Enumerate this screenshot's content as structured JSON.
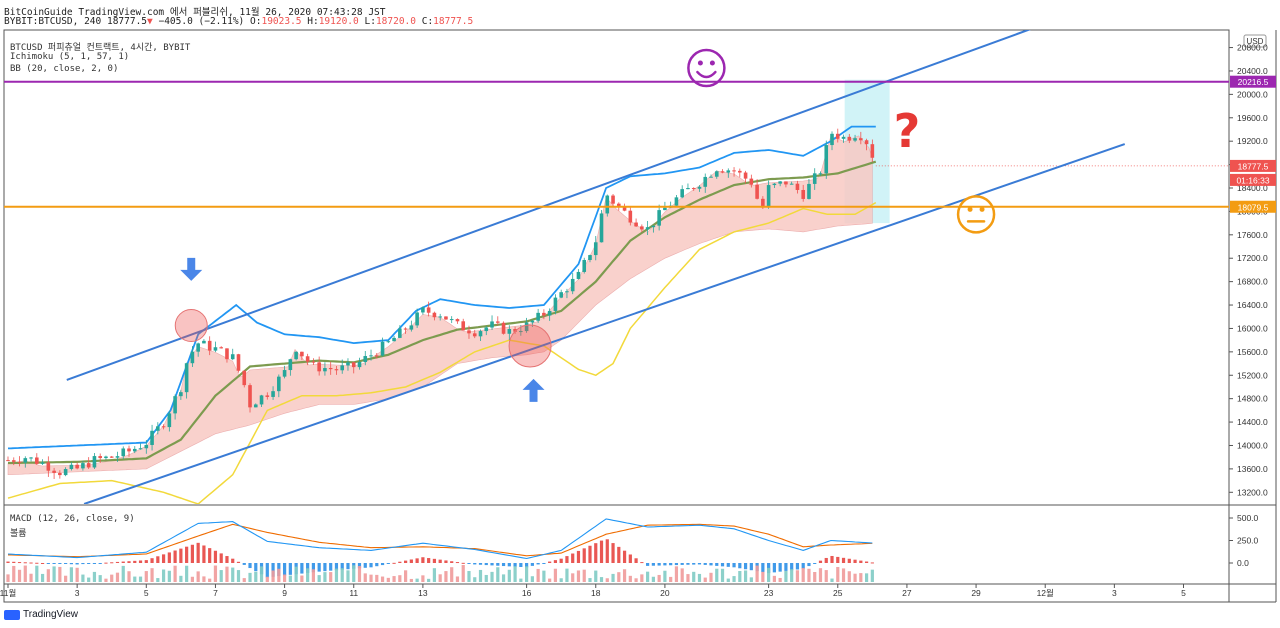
{
  "header": {
    "line1": "BitCoinGuide TradingView.com 에서 퍼블리쉬, 11월 26, 2020 07:43:28 JST",
    "symbol": "BYBIT:BTCUSD, 240",
    "last": "18777.5",
    "change": "−405.0 (−2.11%)",
    "o_label": "O:",
    "o_val": "19023.5",
    "h_label": "H:",
    "h_val": "19120.0",
    "l_label": "L:",
    "l_val": "18720.0",
    "c_label": "C:",
    "c_val": "18777.5"
  },
  "legend": {
    "title": "BTCUSD 퍼피츄얼 컨트랙트, 4시간, BYBIT",
    "ichimoku": "Ichimoku (5, 1, 57, 1)",
    "bb": "BB (20, close, 2, 0)"
  },
  "macd_pane": {
    "label": "MACD (12, 26, close, 9)",
    "sub": "볼륨",
    "y_ticks": [
      500,
      250,
      0
    ],
    "y_tick_labels": [
      "500.0",
      "250.0",
      "0.0"
    ]
  },
  "currency": "USD",
  "brand": "TradingView",
  "colors": {
    "up": "#26a69a",
    "down": "#ef5350",
    "channel": "#3a7bd5",
    "resistance": "#9c27b0",
    "support": "#f39c12",
    "bb": "#2196f3",
    "basis": "#7d9b4f",
    "lagging": "#f2d93b",
    "cloud": "#f8c9c4",
    "teal_box": "#b2ebf2",
    "question": "#e53935"
  },
  "icons": [
    "smiley-face-icon",
    "neutral-face-icon",
    "question-mark-icon",
    "arrow-down-icon",
    "arrow-up-icon"
  ],
  "chart_data": {
    "type": "candlestick",
    "y_ticks": [
      20800,
      20400,
      20000,
      19600,
      19200,
      18800,
      18400,
      18000,
      17600,
      17200,
      16800,
      16400,
      16000,
      15600,
      15200,
      14800,
      14400,
      14000,
      13600,
      13200
    ],
    "y_tick_labels": [
      "20800.0",
      "20400.0",
      "20000.0",
      "19600.0",
      "19200.0",
      "18800.0",
      "18400.0",
      "18000.0",
      "17600.0",
      "17200.0",
      "16800.0",
      "16400.0",
      "16000.0",
      "15600.0",
      "15200.0",
      "14800.0",
      "14400.0",
      "14000.0",
      "13600.0",
      "13200.0"
    ],
    "ylim": [
      13000,
      21100
    ],
    "x_ticks": [
      "11월",
      "3",
      "5",
      "7",
      "9",
      "11",
      "13",
      "16",
      "18",
      "20",
      "23",
      "25",
      "27",
      "29",
      "12월",
      "3",
      "5"
    ],
    "x_tick_days": [
      1,
      3,
      5,
      7,
      9,
      11,
      13,
      16,
      18,
      20,
      23,
      25,
      27,
      29,
      31,
      33,
      35
    ],
    "xlim_days": [
      1,
      36.2
    ],
    "price_labels": [
      {
        "value": 20216.5,
        "text": "20216.5",
        "color": "#9c27b0"
      },
      {
        "value": 18777.5,
        "text": "18777.5",
        "color": "#ef5350"
      },
      {
        "value": 18777.5,
        "text": "01:16:33",
        "color": "#ef5350",
        "offset": 1
      },
      {
        "value": 18079.5,
        "text": "18079.5",
        "color": "#f39c12"
      }
    ],
    "horizontal_lines": [
      {
        "name": "resistance",
        "value": 20216.5
      },
      {
        "name": "support",
        "value": 18079.5
      }
    ],
    "trend_lines": [
      {
        "name": "channel-upper",
        "from": [
          2.7,
          15120
        ],
        "to": [
          31.2,
          21250
        ]
      },
      {
        "name": "channel-lower",
        "from": [
          3.2,
          13000
        ],
        "to": [
          33.3,
          19150
        ]
      }
    ],
    "closes_anchor": [
      [
        1,
        13750
      ],
      [
        1.5,
        13800
      ],
      [
        2,
        13700
      ],
      [
        2.5,
        13550
      ],
      [
        3,
        13600
      ],
      [
        3.5,
        13750
      ],
      [
        4,
        13800
      ],
      [
        4.5,
        13900
      ],
      [
        5,
        14050
      ],
      [
        5.5,
        14400
      ],
      [
        6,
        15000
      ],
      [
        6.2,
        15500
      ],
      [
        6.5,
        15750
      ],
      [
        7,
        15650
      ],
      [
        7.5,
        15500
      ],
      [
        7.8,
        15100
      ],
      [
        8,
        14700
      ],
      [
        8.5,
        14900
      ],
      [
        9,
        15250
      ],
      [
        9.3,
        15700
      ],
      [
        9.8,
        15350
      ],
      [
        10.5,
        15300
      ],
      [
        11,
        15350
      ],
      [
        11.5,
        15550
      ],
      [
        12,
        15750
      ],
      [
        12.5,
        16000
      ],
      [
        13,
        16300
      ],
      [
        13.5,
        16250
      ],
      [
        14,
        16050
      ],
      [
        14.5,
        15950
      ],
      [
        15,
        16050
      ],
      [
        15.5,
        15950
      ],
      [
        16,
        16050
      ],
      [
        16.5,
        16250
      ],
      [
        17,
        16600
      ],
      [
        17.5,
        16900
      ],
      [
        18,
        17500
      ],
      [
        18.3,
        18300
      ],
      [
        18.6,
        18100
      ],
      [
        19,
        17900
      ],
      [
        19.5,
        17700
      ],
      [
        20,
        18050
      ],
      [
        20.5,
        18300
      ],
      [
        21,
        18500
      ],
      [
        21.5,
        18750
      ],
      [
        22,
        18700
      ],
      [
        22.5,
        18500
      ],
      [
        22.8,
        18000
      ],
      [
        23,
        18400
      ],
      [
        23.5,
        18500
      ],
      [
        24,
        18300
      ],
      [
        24.5,
        18700
      ],
      [
        24.8,
        19350
      ],
      [
        25.2,
        19250
      ],
      [
        25.6,
        19350
      ],
      [
        25.9,
        19150
      ],
      [
        26.1,
        18777.5
      ]
    ],
    "bb_upper_anchor": [
      [
        1,
        13950
      ],
      [
        3,
        14000
      ],
      [
        5,
        14050
      ],
      [
        5.7,
        14600
      ],
      [
        6.5,
        15900
      ],
      [
        7.6,
        16400
      ],
      [
        8.2,
        16100
      ],
      [
        9,
        15900
      ],
      [
        10,
        15850
      ],
      [
        11,
        15750
      ],
      [
        12,
        15800
      ],
      [
        12.8,
        16300
      ],
      [
        13.5,
        16500
      ],
      [
        14.5,
        16400
      ],
      [
        15.5,
        16350
      ],
      [
        16.5,
        16400
      ],
      [
        17.5,
        17100
      ],
      [
        18.3,
        18400
      ],
      [
        19,
        18600
      ],
      [
        20,
        18650
      ],
      [
        21,
        18750
      ],
      [
        22,
        19000
      ],
      [
        23,
        19050
      ],
      [
        24,
        18950
      ],
      [
        24.8,
        19200
      ],
      [
        25.4,
        19450
      ],
      [
        26.1,
        19450
      ]
    ],
    "bb_basis_anchor": [
      [
        1,
        13700
      ],
      [
        3,
        13720
      ],
      [
        5,
        13780
      ],
      [
        6,
        14100
      ],
      [
        7,
        14850
      ],
      [
        8,
        15350
      ],
      [
        9,
        15400
      ],
      [
        10,
        15450
      ],
      [
        11,
        15420
      ],
      [
        12,
        15550
      ],
      [
        13,
        15800
      ],
      [
        14,
        15980
      ],
      [
        15,
        16050
      ],
      [
        16,
        16120
      ],
      [
        17,
        16300
      ],
      [
        18,
        16800
      ],
      [
        19,
        17500
      ],
      [
        20,
        17900
      ],
      [
        21,
        18200
      ],
      [
        22,
        18450
      ],
      [
        23,
        18550
      ],
      [
        24,
        18580
      ],
      [
        25,
        18650
      ],
      [
        26.1,
        18850
      ]
    ],
    "lagging_anchor": [
      [
        1,
        13100
      ],
      [
        2.5,
        13350
      ],
      [
        4,
        13400
      ],
      [
        5.5,
        13200
      ],
      [
        6.5,
        13000
      ],
      [
        7.5,
        13500
      ],
      [
        8.5,
        14600
      ],
      [
        9.5,
        14850
      ],
      [
        10.5,
        14850
      ],
      [
        11.5,
        14900
      ],
      [
        12.5,
        15000
      ],
      [
        13.5,
        15250
      ],
      [
        14.5,
        15600
      ],
      [
        15.5,
        15800
      ],
      [
        16.5,
        15700
      ],
      [
        17,
        15500
      ],
      [
        17.5,
        15300
      ],
      [
        18,
        15200
      ],
      [
        18.5,
        15400
      ],
      [
        19,
        16000
      ],
      [
        20,
        16700
      ],
      [
        21,
        17350
      ],
      [
        22,
        17650
      ],
      [
        23,
        17800
      ],
      [
        24,
        18050
      ],
      [
        24.7,
        17950
      ],
      [
        25.5,
        17950
      ],
      [
        26.1,
        18150
      ]
    ],
    "cloud_lower_anchor": [
      [
        1,
        13500
      ],
      [
        3,
        13550
      ],
      [
        5,
        13600
      ],
      [
        6,
        13900
      ],
      [
        7,
        14200
      ],
      [
        8,
        14350
      ],
      [
        9,
        14550
      ],
      [
        10,
        14700
      ],
      [
        11,
        14700
      ],
      [
        12,
        14800
      ],
      [
        13,
        15000
      ],
      [
        14,
        15400
      ],
      [
        15,
        15500
      ],
      [
        16,
        15550
      ],
      [
        16.5,
        15600
      ],
      [
        17,
        15800
      ],
      [
        18,
        16400
      ],
      [
        19,
        16850
      ],
      [
        20,
        17200
      ],
      [
        21,
        17450
      ],
      [
        22,
        17650
      ],
      [
        23,
        17700
      ],
      [
        24,
        17650
      ],
      [
        25,
        17750
      ],
      [
        26.1,
        17800
      ]
    ],
    "teal_box": {
      "x0": 25.2,
      "x1": 26.5,
      "y0": 17800,
      "y1": 20250
    },
    "circles": [
      {
        "day": 6.3,
        "value": 16050,
        "radius": 16
      },
      {
        "day": 16.1,
        "value": 15700,
        "radius": 21
      }
    ],
    "arrows": [
      {
        "name": "arrow-down-icon",
        "day": 6.3,
        "value": 17000,
        "dir": "down"
      },
      {
        "name": "arrow-up-icon",
        "day": 16.2,
        "value": 14950,
        "dir": "up"
      }
    ],
    "faces": [
      {
        "name": "smiley-face-icon",
        "day": 21.2,
        "value": 20450,
        "color": "#9c27b0"
      },
      {
        "name": "neutral-face-icon",
        "day": 29,
        "value": 17950,
        "color": "#f39c12"
      }
    ],
    "question_mark": {
      "day": 27,
      "value": 19100,
      "text": "?"
    }
  }
}
